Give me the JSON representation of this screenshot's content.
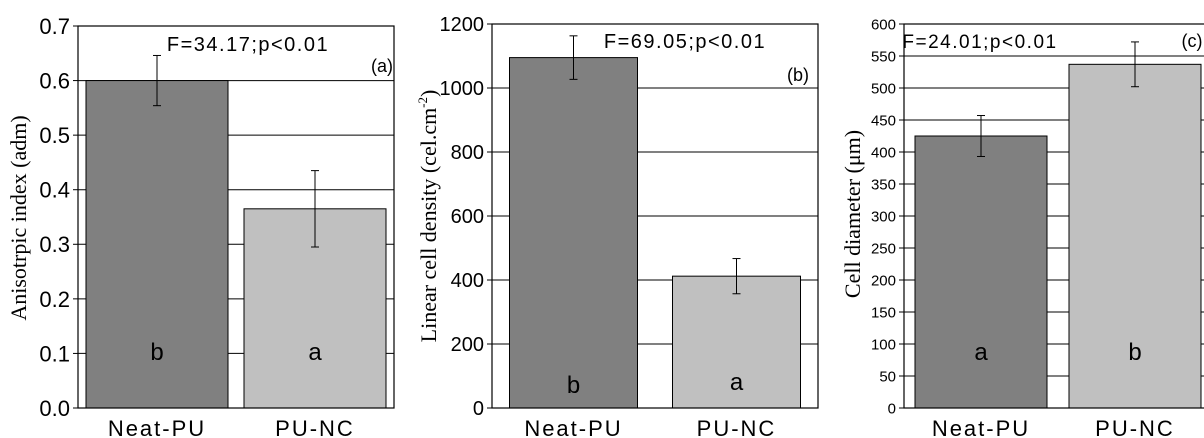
{
  "chart_data": [
    {
      "type": "bar",
      "categories": [
        "Neat-PU",
        "PU-NC"
      ],
      "values": [
        0.6,
        0.365
      ],
      "errors": [
        0.046,
        0.07
      ],
      "group_letters": [
        "b",
        "a"
      ],
      "ylabel": "Anisotrpic index (adm)",
      "ylim": [
        0,
        0.7
      ],
      "yticks": [
        0.0,
        0.1,
        0.2,
        0.3,
        0.4,
        0.5,
        0.6,
        0.7
      ],
      "ytick_labels": [
        "0.0",
        "0.1",
        "0.2",
        "0.3",
        "0.4",
        "0.5",
        "0.6",
        "0.7"
      ],
      "annotation": "F=34.17;p<0.01",
      "panel_label": "(a)",
      "grid": "horizontal",
      "colors": [
        "#808080",
        "#c0c0c0"
      ]
    },
    {
      "type": "bar",
      "categories": [
        "Neat-PU",
        "PU-NC"
      ],
      "values": [
        1095,
        412
      ],
      "errors": [
        68,
        55
      ],
      "group_letters": [
        "b",
        "a"
      ],
      "ylabel_main": "Linear cell density (cel.cm",
      "ylabel_sup": "-2",
      "ylabel_end": ")",
      "ylim": [
        0,
        1200
      ],
      "yticks": [
        0,
        200,
        400,
        600,
        800,
        1000,
        1200
      ],
      "ytick_labels": [
        "0",
        "200",
        "400",
        "600",
        "800",
        "1000",
        "1200"
      ],
      "annotation": "F=69.05;p<0.01",
      "panel_label": "(b)",
      "grid": "horizontal",
      "colors": [
        "#808080",
        "#c0c0c0"
      ]
    },
    {
      "type": "bar",
      "categories": [
        "Neat-PU",
        "PU-NC"
      ],
      "values": [
        425,
        537
      ],
      "errors": [
        32,
        35
      ],
      "group_letters": [
        "a",
        "b"
      ],
      "ylabel": "Cell diameter (μm)",
      "ylim": [
        0,
        600
      ],
      "yticks": [
        0,
        50,
        100,
        150,
        200,
        250,
        300,
        350,
        400,
        450,
        500,
        550,
        600
      ],
      "ytick_labels": [
        "0",
        "50",
        "100",
        "150",
        "200",
        "250",
        "300",
        "350",
        "400",
        "450",
        "500",
        "550",
        "600"
      ],
      "annotation": "F=24.01;p<0.01",
      "panel_label": "(c)",
      "grid": "horizontal",
      "colors": [
        "#808080",
        "#c0c0c0"
      ]
    }
  ]
}
